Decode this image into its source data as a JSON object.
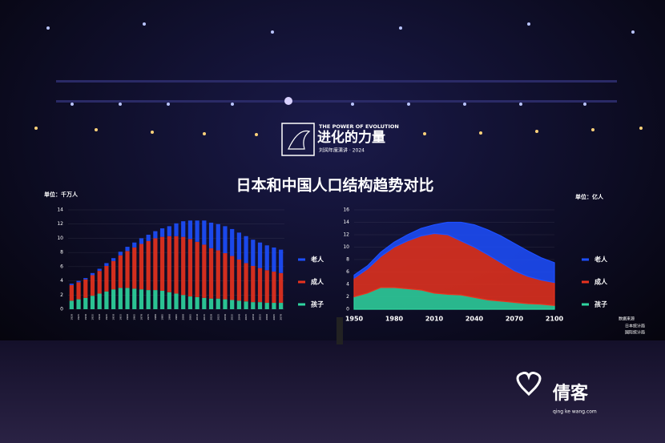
{
  "page": {
    "logo_en": "THE POWER OF EVOLUTION",
    "logo_cn": "进化的力量",
    "logo_sub": "刘润年度演讲 · 2024",
    "title": "日本和中国人口结构趋势对比",
    "source_title": "数据来源",
    "sources": [
      "日本统计局",
      "国际统计局"
    ],
    "watermark": "倩客",
    "watermark_url": "qing ke wang.com"
  },
  "chart_data": [
    {
      "type": "bar",
      "stacked": true,
      "unit_label": "单位：千万人",
      "categories": [
        "1920",
        "1925",
        "1930",
        "1935",
        "1940",
        "1945",
        "1950",
        "1955",
        "1960",
        "1965",
        "1970",
        "1975",
        "1980",
        "1985",
        "1990",
        "1995",
        "2000",
        "2005",
        "2010",
        "2015",
        "2020",
        "2025",
        "2030",
        "2035",
        "2040",
        "2045",
        "2050",
        "2055",
        "2060",
        "2065",
        "2070"
      ],
      "series": [
        {
          "name": "孩子",
          "color": "#2fd6a0",
          "values": [
            1.2,
            1.4,
            1.6,
            1.9,
            2.2,
            2.5,
            2.8,
            3.0,
            3.0,
            2.9,
            2.8,
            2.7,
            2.7,
            2.6,
            2.4,
            2.2,
            2.0,
            1.8,
            1.7,
            1.6,
            1.5,
            1.5,
            1.4,
            1.3,
            1.2,
            1.1,
            1.0,
            1.0,
            0.9,
            0.9,
            0.9
          ]
        },
        {
          "name": "成人",
          "color": "#e8321e",
          "values": [
            2.2,
            2.4,
            2.6,
            2.9,
            3.2,
            3.6,
            4.0,
            4.6,
            5.2,
            5.8,
            6.4,
            6.9,
            7.3,
            7.6,
            7.9,
            8.1,
            8.2,
            8.1,
            7.8,
            7.5,
            7.1,
            6.8,
            6.5,
            6.2,
            5.8,
            5.4,
            5.1,
            4.8,
            4.6,
            4.4,
            4.2
          ]
        },
        {
          "name": "老人",
          "color": "#1d4fff",
          "values": [
            0.2,
            0.2,
            0.2,
            0.3,
            0.3,
            0.4,
            0.4,
            0.5,
            0.6,
            0.7,
            0.8,
            0.9,
            1.0,
            1.2,
            1.4,
            1.8,
            2.2,
            2.6,
            3.0,
            3.4,
            3.6,
            3.7,
            3.8,
            3.8,
            3.8,
            3.8,
            3.7,
            3.6,
            3.5,
            3.4,
            3.3
          ]
        }
      ],
      "ylim": [
        0,
        14
      ],
      "yticks": [
        0,
        2,
        4,
        6,
        8,
        10,
        12,
        14
      ]
    },
    {
      "type": "area",
      "stacked": true,
      "unit_label": "单位：亿人",
      "x": [
        1950,
        1960,
        1970,
        1980,
        1990,
        2000,
        2010,
        2020,
        2030,
        2040,
        2050,
        2060,
        2070,
        2080,
        2090,
        2100
      ],
      "series": [
        {
          "name": "孩子",
          "color": "#2fd6a0",
          "values": [
            2.0,
            2.6,
            3.5,
            3.5,
            3.3,
            3.1,
            2.6,
            2.4,
            2.3,
            1.9,
            1.5,
            1.3,
            1.1,
            0.9,
            0.8,
            0.6
          ]
        },
        {
          "name": "成人",
          "color": "#e8321e",
          "values": [
            3.0,
            3.9,
            5.0,
            6.5,
            7.7,
            8.7,
            9.6,
            9.6,
            8.7,
            8.1,
            7.3,
            6.2,
            5.1,
            4.4,
            3.9,
            3.7
          ]
        },
        {
          "name": "老人",
          "color": "#1d4fff",
          "values": [
            0.5,
            0.5,
            0.7,
            0.8,
            1.0,
            1.2,
            1.4,
            2.0,
            3.0,
            3.6,
            4.0,
            4.3,
            4.4,
            4.1,
            3.6,
            3.2
          ]
        }
      ],
      "xlim": [
        1950,
        2100
      ],
      "xticks": [
        1950,
        1980,
        2010,
        2040,
        2070,
        2100
      ],
      "ylim": [
        0,
        16
      ],
      "yticks": [
        0,
        2,
        4,
        6,
        8,
        10,
        12,
        14,
        16
      ]
    }
  ]
}
